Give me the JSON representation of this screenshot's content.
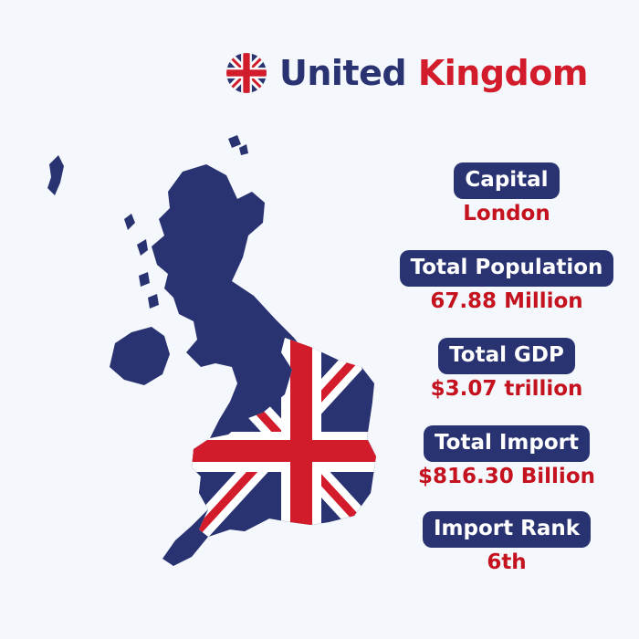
{
  "title": {
    "part1": "United",
    "part2": "Kingdom"
  },
  "icons": {
    "flag": "union-jack-flag-icon",
    "map": "united-kingdom-map"
  },
  "colors": {
    "navy": "#2a3372",
    "red": "#d21c2c",
    "background": "#f4f7fb"
  },
  "stats": [
    {
      "label": "Capital",
      "value": "London"
    },
    {
      "label": "Total Population",
      "value": "67.88 Million"
    },
    {
      "label": "Total GDP",
      "value": "$3.07 trillion"
    },
    {
      "label": "Total Import",
      "value": "$816.30 Billion"
    },
    {
      "label": "Import Rank",
      "value": "6th"
    }
  ]
}
